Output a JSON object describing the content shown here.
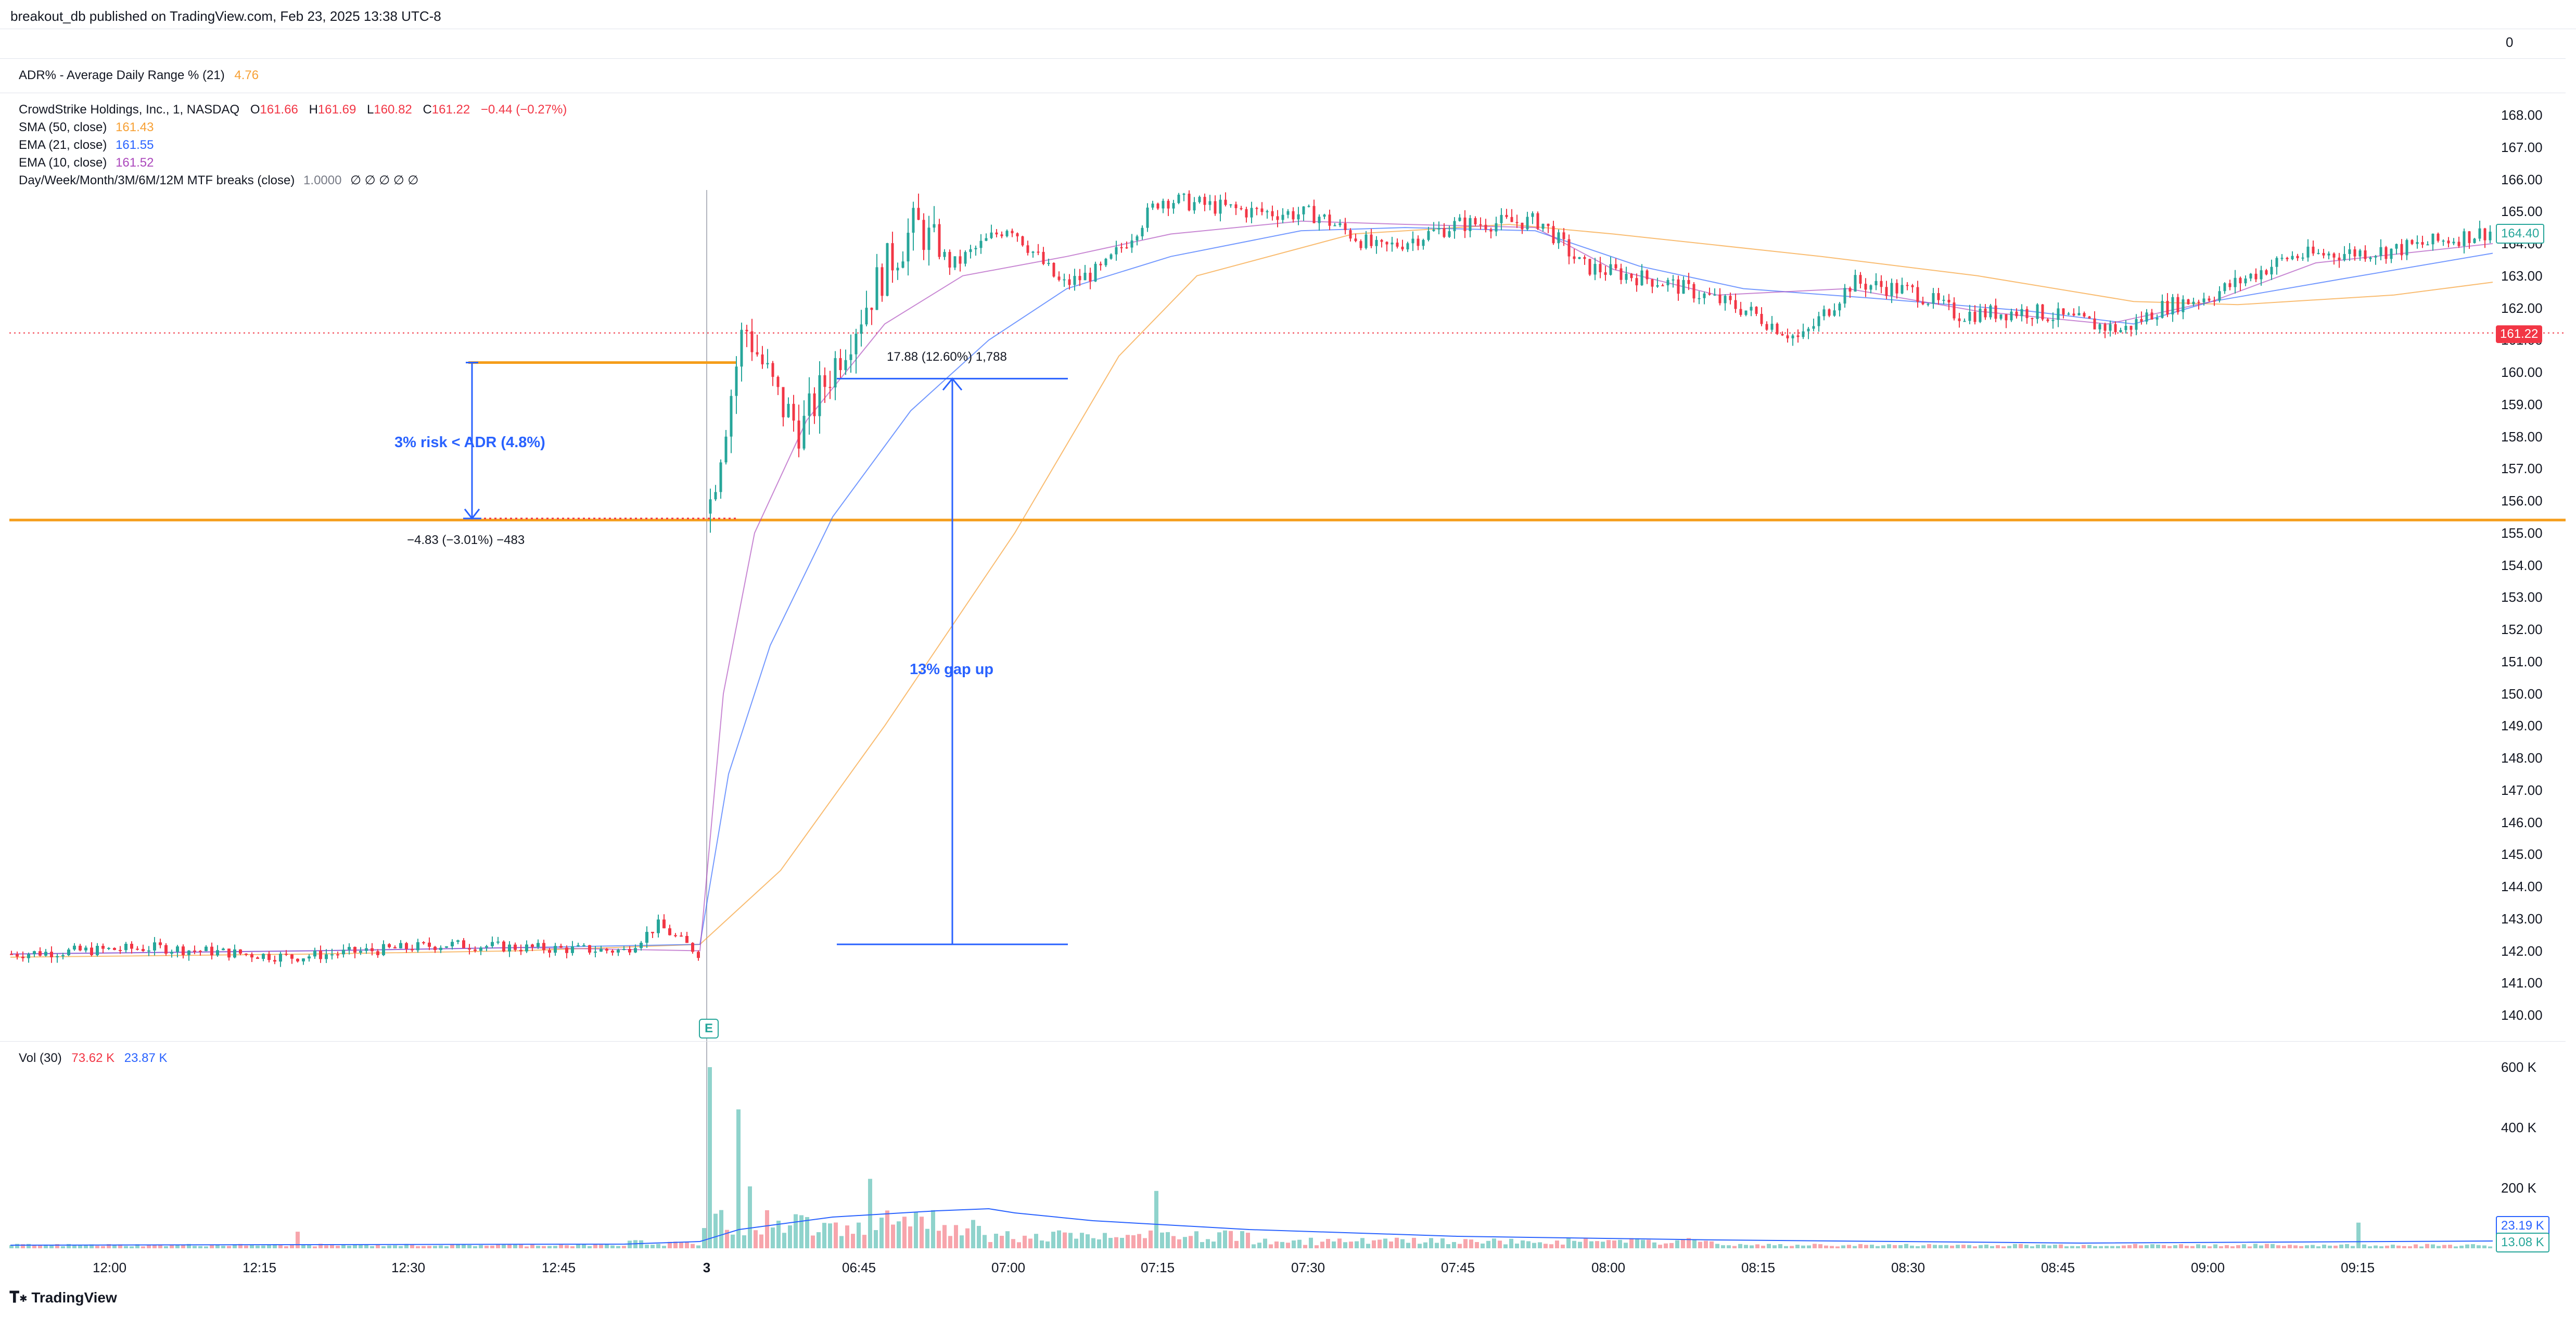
{
  "publish_line": "breakout_db published on TradingView.com, Feb 23, 2025 13:38 UTC-8",
  "adr_pane": {
    "label": "ADR% - Average Daily Range % (21)",
    "value": "4.76",
    "scale_value": "0"
  },
  "legend": {
    "symbol_line": "CrowdStrike Holdings, Inc., 1, NASDAQ",
    "o_label": "O",
    "o_value": "161.66",
    "h_label": "H",
    "h_value": "161.69",
    "l_label": "L",
    "l_value": "160.82",
    "c_label": "C",
    "c_value": "161.22",
    "change": "−0.44 (−0.27%)",
    "sma_label": "SMA (50, close)",
    "sma_value": "161.43",
    "ema21_label": "EMA (21, close)",
    "ema21_value": "161.55",
    "ema10_label": "EMA (10, close)",
    "ema10_value": "161.52",
    "mtf_label": "Day/Week/Month/3M/6M/12M MTF breaks (close)",
    "mtf_value": "1.0000",
    "mtf_symbols": "∅ ∅ ∅ ∅ ∅"
  },
  "price_axis": [
    "168.00",
    "167.00",
    "166.00",
    "165.00",
    "164.00",
    "163.00",
    "162.00",
    "161.00",
    "160.00",
    "159.00",
    "158.00",
    "157.00",
    "156.00",
    "155.00",
    "154.00",
    "153.00",
    "152.00",
    "151.00",
    "150.00",
    "149.00",
    "148.00",
    "147.00",
    "146.00",
    "145.00",
    "144.00",
    "143.00",
    "142.00",
    "141.00",
    "140.00"
  ],
  "price_tags": {
    "last": "164.40",
    "current": "161.22"
  },
  "annotations": {
    "risk_text": "3% risk < ADR (4.8%)",
    "risk_measure": "−4.83 (−3.01%) −483",
    "gap_text": "13% gap up",
    "gap_measure": "17.88 (12.60%) 1,788",
    "earnings_badge": "E"
  },
  "volume": {
    "label": "Vol (30)",
    "value1": "73.62 K",
    "value2": "23.87 K",
    "axis": [
      "600 K",
      "400 K",
      "200 K"
    ],
    "tag_ma": "23.19 K",
    "tag_vol": "13.08 K"
  },
  "time_axis": [
    "12:00",
    "12:15",
    "12:30",
    "12:45",
    "3",
    "06:45",
    "07:00",
    "07:15",
    "07:30",
    "07:45",
    "08:00",
    "08:15",
    "08:30",
    "08:45",
    "09:00",
    "09:15"
  ],
  "brand": "TradingView",
  "colors": {
    "up": "#26a69a",
    "down": "#f23645",
    "sma": "#f7a034",
    "ema21": "#2962ff",
    "ema10": "#ab47bc",
    "annotation": "#2962ff",
    "level": "#f59d1a",
    "vol_ma": "#2962ff"
  },
  "chart_data": {
    "type": "line",
    "title": "CrowdStrike Holdings, Inc., 1, NASDAQ",
    "xlabel": "",
    "ylabel": "",
    "ylim": [
      139.6,
      168.4
    ],
    "x": [
      "12:00",
      "12:15",
      "12:30",
      "12:45",
      "3",
      "06:45",
      "07:00",
      "07:15",
      "07:30",
      "07:45",
      "08:00",
      "08:15",
      "08:30",
      "08:45",
      "09:00",
      "09:15"
    ],
    "series": [
      {
        "name": "Close",
        "values": [
          141.9,
          142.1,
          142.2,
          142.1,
          159.8,
          162.5,
          164.1,
          165.3,
          164.7,
          164.5,
          163.2,
          162.2,
          162.6,
          161.3,
          162.6,
          163.7
        ]
      },
      {
        "name": "SMA (50, close)",
        "values": [
          141.9,
          142.0,
          142.1,
          142.2,
          142.4,
          150.0,
          157.5,
          163.0,
          164.3,
          164.6,
          164.3,
          163.6,
          162.9,
          162.3,
          162.0,
          162.4
        ]
      },
      {
        "name": "EMA (21, close)",
        "values": [
          141.9,
          142.0,
          142.1,
          142.2,
          148.0,
          157.0,
          161.8,
          163.8,
          164.6,
          164.5,
          163.6,
          162.5,
          162.5,
          161.9,
          162.2,
          163.1
        ]
      },
      {
        "name": "EMA (10, close)",
        "values": [
          141.9,
          142.0,
          142.1,
          142.2,
          150.5,
          159.5,
          162.8,
          164.3,
          164.8,
          164.5,
          163.3,
          162.3,
          162.6,
          161.7,
          162.3,
          163.3
        ]
      }
    ],
    "levels": [
      160.3,
      155.4
    ]
  }
}
